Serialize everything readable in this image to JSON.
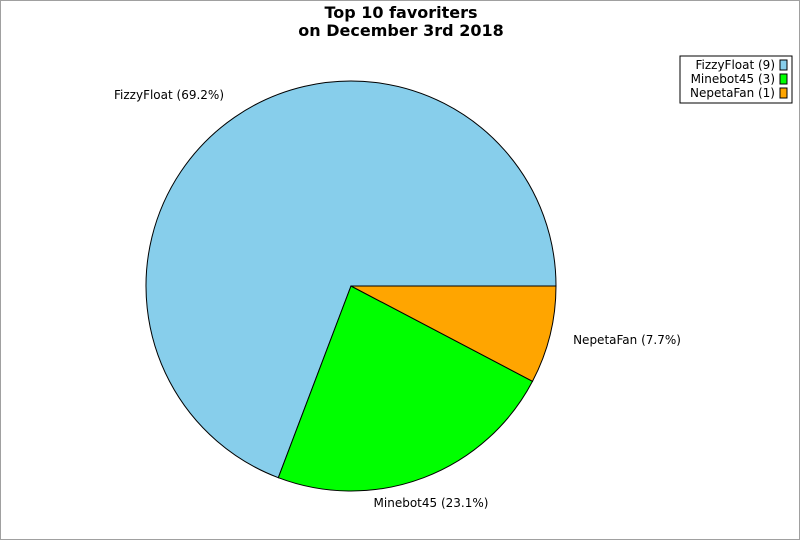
{
  "chart_data": {
    "type": "pie",
    "title": [
      "Top 10 favoriters",
      "on December 3rd 2018"
    ],
    "slices": [
      {
        "name": "FizzyFloat",
        "value": 9,
        "percent": "69.2%",
        "color": "#87ceeb",
        "label": "FizzyFloat (69.2%)",
        "legend": "FizzyFloat (9)"
      },
      {
        "name": "Minebot45",
        "value": 3,
        "percent": "23.1%",
        "color": "#00ff00",
        "label": "Minebot45 (23.1%)",
        "legend": "Minebot45 (3)"
      },
      {
        "name": "NepetaFan",
        "value": 1,
        "percent": "7.7%",
        "color": "#ffa500",
        "label": "NepetaFan (7.7%)",
        "legend": "NepetaFan (1)"
      }
    ],
    "legend_position": "top-right"
  }
}
